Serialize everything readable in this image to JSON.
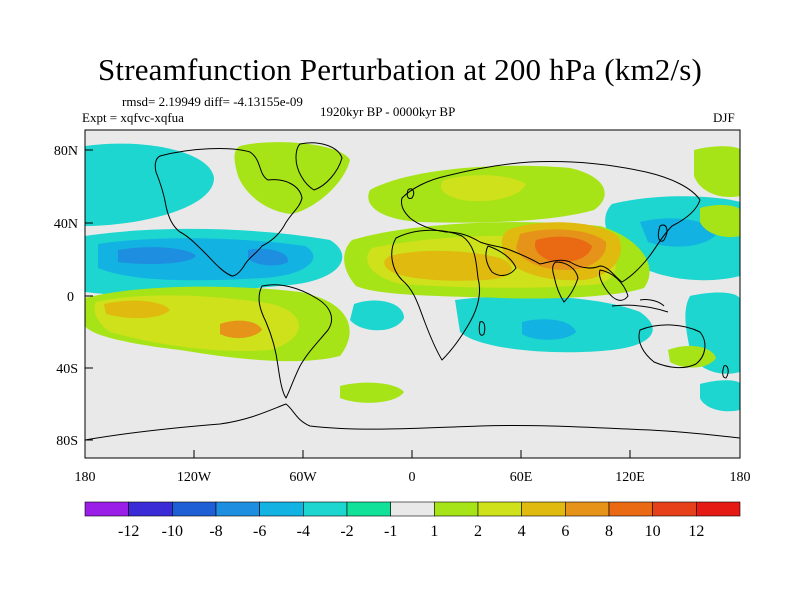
{
  "title": "Streamfunction Perturbation at 200 hPa (km2/s)",
  "stats": "rmsd= 2.19949  diff= -4.13155e-09",
  "experiment": "Expt = xqfvc-xqfua",
  "period": "1920kyr BP - 0000kyr BP",
  "season": "DJF",
  "latitude_labels": [
    "80N",
    "40N",
    "0",
    "40S",
    "80S"
  ],
  "longitude_labels": [
    "180",
    "120W",
    "60W",
    "0",
    "60E",
    "120E",
    "180"
  ],
  "colorbar": {
    "labels": [
      "-12",
      "-10",
      "-8",
      "-6",
      "-4",
      "-2",
      "-1",
      "1",
      "2",
      "4",
      "6",
      "8",
      "10",
      "12"
    ],
    "colors": [
      "#9a1ee8",
      "#3a2bd6",
      "#1f5fd6",
      "#1e8ee0",
      "#12b2e2",
      "#1cd6cf",
      "#12e19a",
      "#e9e9e9",
      "#a6e417",
      "#cfe11a",
      "#e0ba0e",
      "#e6931a",
      "#ea6a14",
      "#e5401a",
      "#e61a14"
    ]
  }
}
